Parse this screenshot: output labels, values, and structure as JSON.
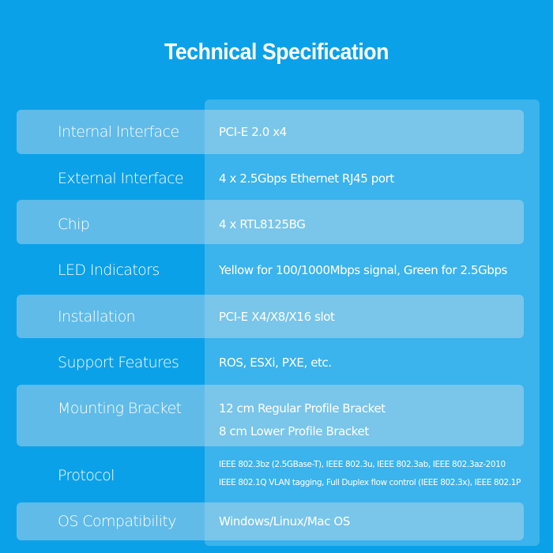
{
  "title": "Technical Specification",
  "specs": [
    {
      "label": "Internal Interface",
      "value": [
        "PCI-E 2.0 x4"
      ]
    },
    {
      "label": "External Interface",
      "value": [
        "4 x 2.5Gbps Ethernet RJ45 port"
      ]
    },
    {
      "label": "Chip",
      "value": [
        "4 x RTL8125BG"
      ]
    },
    {
      "label": "LED Indicators",
      "value": [
        "Yellow for 100/1000Mbps signal, Green for 2.5Gbps"
      ]
    },
    {
      "label": "Installation",
      "value": [
        "PCI-E X4/X8/X16 slot"
      ]
    },
    {
      "label": "Support Features",
      "value": [
        "ROS, ESXi, PXE, etc."
      ]
    },
    {
      "label": "Mounting Bracket",
      "value": [
        "12 cm Regular Profile Bracket",
        "8 cm Lower Profile Bracket"
      ]
    },
    {
      "label": "Protocol",
      "value": [
        "IEEE 802.3bz (2.5GBase-T), IEEE 802.3u, IEEE 802.3ab, IEEE 802.3az-2010",
        "IEEE 802.1Q VLAN tagging, Full Duplex flow control (IEEE 802.3x), IEEE 802.1P"
      ]
    },
    {
      "label": "OS Compatibility",
      "value": [
        "Windows/Linux/Mac OS"
      ]
    }
  ],
  "colors": {
    "background": "#0ba1e9",
    "text": "#ffffff"
  }
}
